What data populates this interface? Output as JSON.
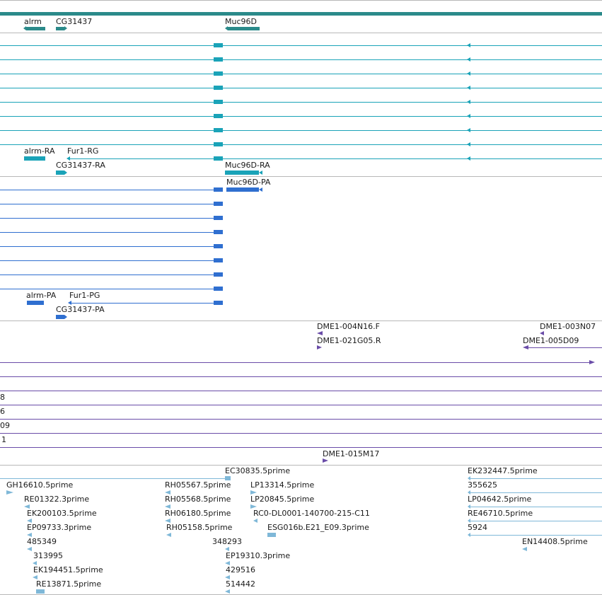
{
  "colors": {
    "gene": "#2b8a8a",
    "transcript": "#1aa3b8",
    "protein": "#2f6fd0",
    "clone": "#6a4ca8",
    "est": "#7fb8d8"
  },
  "tracks": {
    "genes": {
      "labels": {
        "alrm": "alrm",
        "cg31437": "CG31437",
        "muc96d": "Muc96D"
      }
    },
    "transcripts": {
      "labels": {
        "alrm_ra": "alrm-RA",
        "fur1_rg": "Fur1-RG",
        "cg31437_ra": "CG31437-RA",
        "muc96d_ra": "Muc96D-RA"
      }
    },
    "proteins": {
      "labels": {
        "muc96d_pa": "Muc96D-PA",
        "alrm_pa": "alrm-PA",
        "fur1_pg": "Fur1-PG",
        "cg31437_pa": "CG31437-PA"
      }
    },
    "clones": {
      "labels": {
        "c1": "DME1-004N16.F",
        "c2": "DME1-003N07",
        "c3": "DME1-021G05.R",
        "c4": "DME1-005D09",
        "c5": "8",
        "c6": "6",
        "c7": "09",
        "c8": "1",
        "c9": "DME1-015M17"
      }
    },
    "ests": {
      "labels": {
        "e1": "EC30835.5prime",
        "e2": "EK232447.5prime",
        "e3": "GH16610.5prime",
        "e4": "RH05567.5prime",
        "e5": "LP13314.5prime",
        "e6": "355625",
        "e7": "RE01322.3prime",
        "e8": "RH05568.5prime",
        "e9": "LP20845.5prime",
        "e10": "LP04642.5prime",
        "e11": "EK200103.5prime",
        "e12": "RH06180.5prime",
        "e13": "RC0-DL0001-140700-215-C11",
        "e14": "RE46710.5prime",
        "e15": "EP09733.3prime",
        "e16": "RH05158.5prime",
        "e17": "ESG016b.E21_E09.3prime",
        "e18": "5924",
        "e19": "485349",
        "e20": "348293",
        "e21": "EN14408.5prime",
        "e22": "313995",
        "e23": "EP19310.3prime",
        "e24": "EK194451.5prime",
        "e25": "429516",
        "e26": "RE13871.5prime",
        "e27": "514442"
      }
    }
  }
}
